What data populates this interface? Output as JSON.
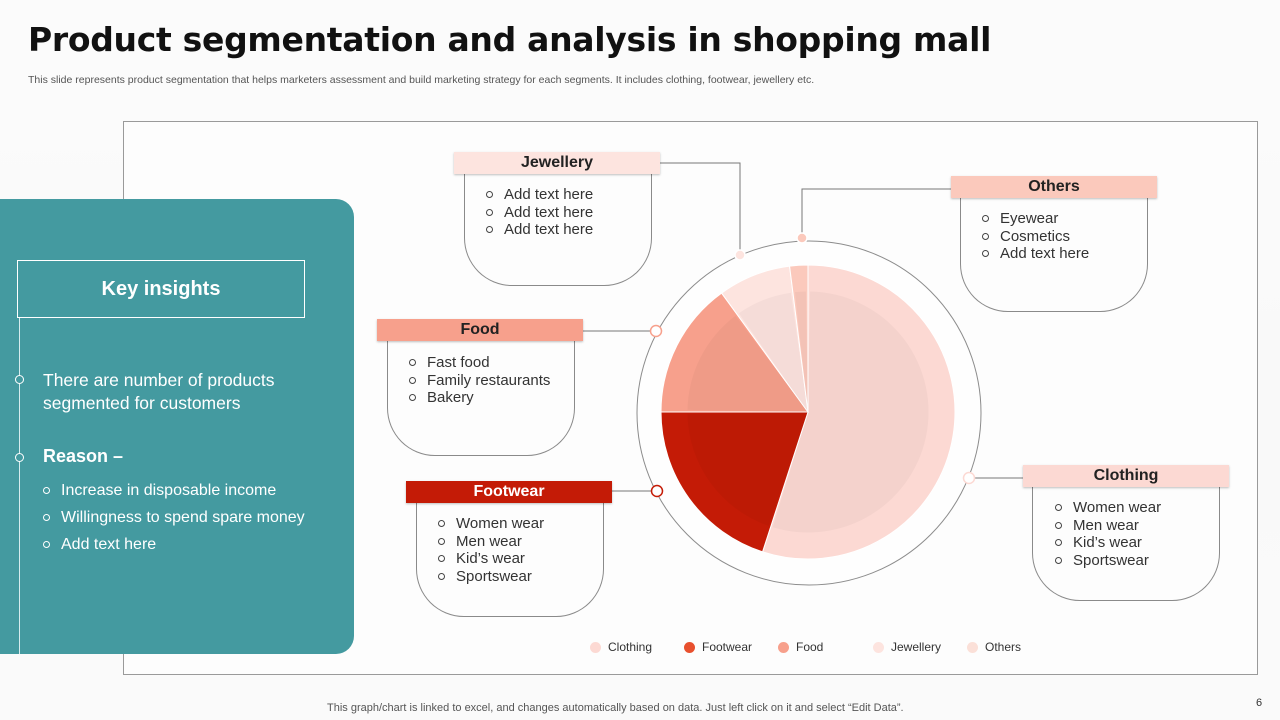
{
  "title": "Product segmentation and analysis in shopping mall",
  "subtitle": "This slide represents product segmentation that helps marketers assessment and build marketing strategy for each segments. It includes clothing, footwear, jewellery etc.",
  "insights": {
    "heading": "Key insights",
    "statement": "There are number of products segmented for customers",
    "reason_label": "Reason –",
    "reasons": [
      "Increase  in disposable income",
      "Willingness to spend spare money",
      "Add text here"
    ]
  },
  "segments": {
    "jewellery": {
      "label": "Jewellery",
      "items": [
        "Add text here",
        "Add text here",
        "Add text here"
      ]
    },
    "others": {
      "label": "Others",
      "items": [
        "Eyewear",
        "Cosmetics",
        "Add text here"
      ]
    },
    "food": {
      "label": "Food",
      "items": [
        "Fast food",
        "Family restaurants",
        "Bakery"
      ]
    },
    "footwear": {
      "label": "Footwear",
      "items": [
        "Women wear",
        "Men wear",
        "Kid’s wear",
        "Sportswear"
      ]
    },
    "clothing": {
      "label": "Clothing",
      "items": [
        "Women wear",
        "Men wear",
        "Kid’s wear",
        "Sportswear"
      ]
    }
  },
  "colors": {
    "teal": "#449aa0",
    "clothing": "#fcd9d3",
    "footwear": "#c41b06",
    "food": "#f7a08c",
    "jewellery": "#fde4df",
    "others": "#fbc9bc"
  },
  "chart_data": {
    "type": "pie",
    "categories": [
      "Clothing",
      "Footwear",
      "Food",
      "Jewellery",
      "Others"
    ],
    "values": [
      55,
      20,
      15,
      8,
      2
    ],
    "legend_position": "bottom"
  },
  "footer": {
    "note": "This graph/chart is linked to excel,  and changes automatically based on data. Just left click on it and select “Edit Data”.",
    "page": "6"
  }
}
